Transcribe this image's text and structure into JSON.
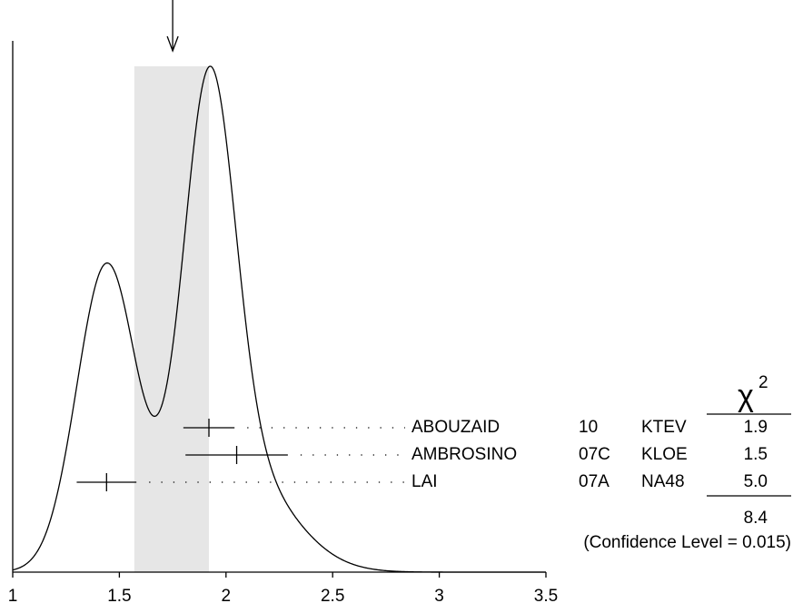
{
  "chart_data": {
    "type": "ideogram",
    "xlim": [
      1,
      3.5
    ],
    "xticks": [
      1,
      1.5,
      2,
      2.5,
      3,
      3.5
    ],
    "average": 1.75,
    "band": [
      1.57,
      1.92
    ],
    "curve_color": "#000000",
    "band_color": "#e6e6e6",
    "chi2_header": {
      "symbol": "χ",
      "superscript": "2"
    },
    "measurements": [
      {
        "name": "ABOUZAID",
        "year": "10",
        "experiment": "KTEV",
        "value": 1.92,
        "error": 0.12,
        "chi2": "1.9"
      },
      {
        "name": "AMBROSINO",
        "year": "07C",
        "experiment": "KLOE",
        "value": 2.05,
        "error": 0.24,
        "chi2": "1.5"
      },
      {
        "name": "LAI",
        "year": "07A",
        "experiment": "NA48",
        "value": 1.44,
        "error": 0.14,
        "chi2": "5.0"
      }
    ],
    "chi2_total": "8.4",
    "confidence_level": "(Confidence Level = 0.015)"
  }
}
